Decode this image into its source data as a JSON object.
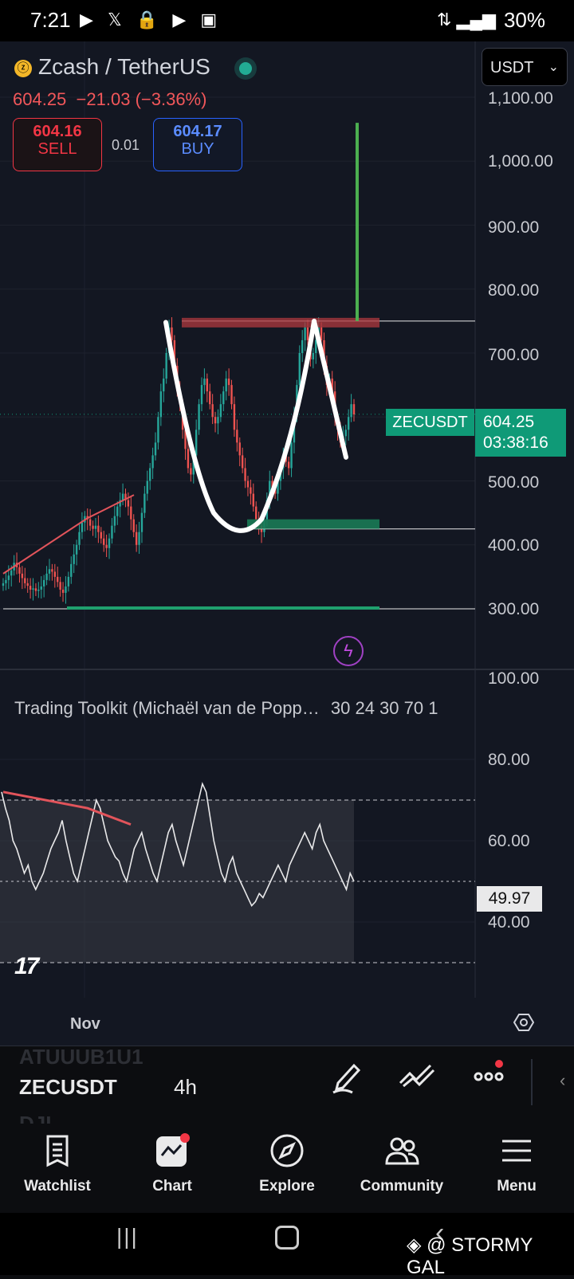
{
  "status_bar": {
    "time": "7:21",
    "battery": "30%"
  },
  "header": {
    "symbol_name": "Zcash / TetherUS",
    "last_price": "604.25",
    "change": "−21.03",
    "change_pct": "(−3.36%)",
    "sell_price": "604.16",
    "sell_label": "SELL",
    "spread": "0.01",
    "buy_price": "604.17",
    "buy_label": "BUY",
    "currency": "USDT"
  },
  "price_axis": [
    "1,100.00",
    "1,000.00",
    "900.00",
    "800.00",
    "700.00",
    "500.00",
    "400.00",
    "300.00"
  ],
  "price_tag": {
    "symbol": "ZECUSDT",
    "price": "604.25",
    "countdown": "03:38:16"
  },
  "indicator": {
    "title": "Trading Toolkit (Michaël van de Popp…",
    "params": "30 24 30 70 1",
    "axis": [
      "100.00",
      "80.00",
      "60.00",
      "40.00"
    ],
    "value": "49.97"
  },
  "time_axis": {
    "label": "Nov"
  },
  "toolbar": {
    "symbol": "ZECUSDT",
    "interval": "4h",
    "ghost_above": "ATUUUB1U1",
    "ghost_below": "DJI"
  },
  "nav": [
    {
      "label": "Watchlist"
    },
    {
      "label": "Chart"
    },
    {
      "label": "Explore"
    },
    {
      "label": "Community"
    },
    {
      "label": "Menu"
    }
  ],
  "watermark": "@ STORMY GAL",
  "colors": {
    "bull": "#26a69a",
    "bear": "#ef5350",
    "accent": "#0f9a77",
    "target": "#4caf50",
    "resistance": "#b03a3f"
  },
  "chart_data": {
    "type": "candlestick",
    "symbol": "ZECUSDT",
    "interval": "4h",
    "price_axis": [
      300,
      400,
      500,
      600,
      700,
      800,
      900,
      1000,
      1100
    ],
    "last_price": 604.25,
    "closes": [
      340,
      345,
      352,
      360,
      372,
      365,
      355,
      348,
      340,
      336,
      330,
      332,
      328,
      330,
      335,
      345,
      355,
      362,
      358,
      350,
      342,
      330,
      325,
      335,
      350,
      370,
      385,
      400,
      420,
      435,
      445,
      440,
      430,
      425,
      430,
      420,
      410,
      400,
      395,
      410,
      430,
      445,
      460,
      470,
      480,
      470,
      460,
      440,
      420,
      400,
      420,
      450,
      480,
      500,
      520,
      540,
      560,
      600,
      640,
      660,
      700,
      740,
      720,
      680,
      640,
      620,
      580,
      550,
      520,
      510,
      540,
      580,
      620,
      650,
      660,
      640,
      620,
      600,
      590,
      600,
      620,
      640,
      660,
      650,
      620,
      580,
      560,
      540,
      520,
      500,
      490,
      480,
      460,
      440,
      430,
      420,
      440,
      470,
      500,
      490,
      480,
      500,
      520,
      540,
      530,
      520,
      560,
      600,
      650,
      700,
      720,
      740,
      720,
      690,
      700,
      720,
      740,
      720,
      680,
      650,
      660,
      640,
      600,
      580,
      560,
      570,
      580,
      600,
      620,
      604
    ],
    "resistance": 750,
    "support": 425,
    "base": 300,
    "target": 1060,
    "rsi_axis": [
      40,
      60,
      80,
      100
    ],
    "rsi_last": 49.97,
    "rsi": [
      72,
      68,
      65,
      60,
      58,
      55,
      52,
      54,
      50,
      48,
      50,
      52,
      55,
      58,
      60,
      62,
      65,
      60,
      56,
      52,
      50,
      54,
      58,
      62,
      66,
      70,
      68,
      64,
      60,
      58,
      56,
      55,
      52,
      50,
      54,
      58,
      60,
      62,
      58,
      55,
      52,
      50,
      54,
      58,
      62,
      64,
      60,
      57,
      54,
      58,
      62,
      66,
      70,
      74,
      72,
      66,
      60,
      56,
      52,
      50,
      54,
      56,
      52,
      50,
      48,
      46,
      44,
      45,
      47,
      46,
      48,
      50,
      52,
      54,
      52,
      50,
      54,
      56,
      58,
      60,
      62,
      60,
      58,
      62,
      64,
      60,
      58,
      56,
      54,
      52,
      50,
      48,
      52,
      50
    ]
  }
}
